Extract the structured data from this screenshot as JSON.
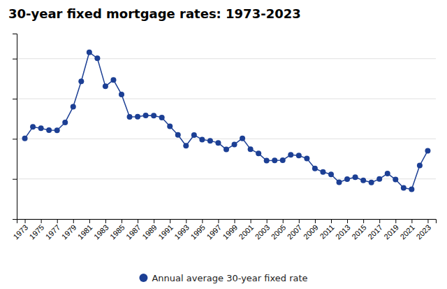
{
  "chart_data": {
    "type": "line",
    "title": "30-year fixed mortgage rates: 1973-2023",
    "x": [
      1973,
      1974,
      1975,
      1976,
      1977,
      1978,
      1979,
      1980,
      1981,
      1982,
      1983,
      1984,
      1985,
      1986,
      1987,
      1988,
      1989,
      1990,
      1991,
      1992,
      1993,
      1994,
      1995,
      1996,
      1997,
      1998,
      1999,
      2000,
      2001,
      2002,
      2003,
      2004,
      2005,
      2006,
      2007,
      2008,
      2009,
      2010,
      2011,
      2012,
      2013,
      2014,
      2015,
      2016,
      2017,
      2018,
      2019,
      2020,
      2021,
      2022,
      2023
    ],
    "series": [
      {
        "name": "Annual average 30-year fixed rate",
        "color": "#1c3f94",
        "marker": "circle",
        "values": [
          8.04,
          9.19,
          9.05,
          8.87,
          8.85,
          9.64,
          11.2,
          13.74,
          16.63,
          16.04,
          13.24,
          13.88,
          12.43,
          10.19,
          10.21,
          10.34,
          10.32,
          10.13,
          9.25,
          8.39,
          7.31,
          8.38,
          7.93,
          7.81,
          7.6,
          6.94,
          7.44,
          8.05,
          6.97,
          6.54,
          5.83,
          5.84,
          5.87,
          6.41,
          6.34,
          6.03,
          5.04,
          4.69,
          4.45,
          3.66,
          3.98,
          4.17,
          3.85,
          3.65,
          3.99,
          4.54,
          3.94,
          3.11,
          2.96,
          5.34,
          6.81
        ]
      }
    ],
    "xlim": [
      1972,
      2024
    ],
    "xticks": [
      1973,
      1975,
      1977,
      1979,
      1981,
      1983,
      1985,
      1987,
      1989,
      1991,
      1993,
      1995,
      1997,
      1999,
      2001,
      2003,
      2005,
      2007,
      2009,
      2011,
      2013,
      2015,
      2017,
      2019,
      2021,
      2023
    ],
    "ylim": [
      0,
      18.5
    ],
    "yticks": [
      0,
      4,
      8,
      12,
      16
    ],
    "grid": "y",
    "tick_labels": "x",
    "legend": "bottom"
  }
}
